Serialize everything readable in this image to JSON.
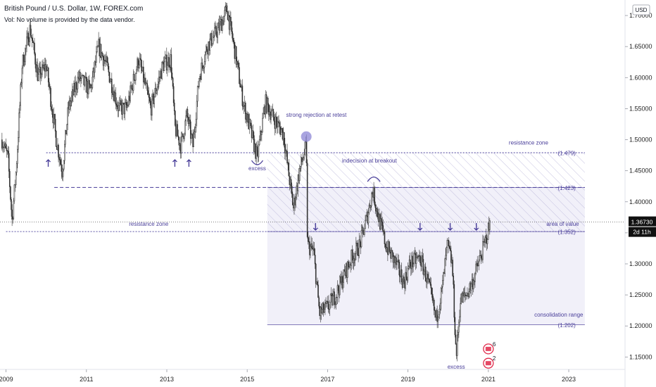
{
  "header": {
    "title": "British Pound / U.S. Dollar, 1W, FOREX.com",
    "volume_note": "Vol: No volume is provided by the data vendor."
  },
  "price_axis": {
    "currency_button": "USD",
    "current_price_label": "1.36730",
    "countdown_label": "2d 11h"
  },
  "colors": {
    "candle": "#333333",
    "accent": "#4a3f9a",
    "zone_fill": "#eeedf8",
    "price_tag": "#111111"
  },
  "chart_data": {
    "type": "candlestick",
    "symbol": "GBPUSD",
    "timeframe": "1W",
    "ylim": [
      1.13,
      1.725
    ],
    "x_range": [
      2008.85,
      2024.4
    ],
    "x_tick_labels": [
      "2009",
      "2011",
      "2013",
      "2015",
      "2017",
      "2019",
      "2021",
      "2023"
    ],
    "x_tick_values": [
      2009,
      2011,
      2013,
      2015,
      2017,
      2019,
      2021,
      2023
    ],
    "y_tick_labels": [
      "1.15000",
      "1.20000",
      "1.25000",
      "1.30000",
      "1.35000",
      "1.40000",
      "1.45000",
      "1.50000",
      "1.55000",
      "1.60000",
      "1.65000",
      "1.70000"
    ],
    "y_tick_values": [
      1.15,
      1.2,
      1.25,
      1.3,
      1.35,
      1.4,
      1.45,
      1.5,
      1.55,
      1.6,
      1.65,
      1.7
    ],
    "current_price": 1.3673,
    "price_path": [
      [
        2008.9,
        1.5
      ],
      [
        2009.05,
        1.47
      ],
      [
        2009.15,
        1.37
      ],
      [
        2009.25,
        1.45
      ],
      [
        2009.4,
        1.62
      ],
      [
        2009.6,
        1.68
      ],
      [
        2009.8,
        1.6
      ],
      [
        2010.0,
        1.62
      ],
      [
        2010.25,
        1.5
      ],
      [
        2010.4,
        1.45
      ],
      [
        2010.55,
        1.55
      ],
      [
        2010.8,
        1.6
      ],
      [
        2011.1,
        1.58
      ],
      [
        2011.3,
        1.65
      ],
      [
        2011.5,
        1.62
      ],
      [
        2011.8,
        1.55
      ],
      [
        2012.0,
        1.55
      ],
      [
        2012.3,
        1.63
      ],
      [
        2012.6,
        1.55
      ],
      [
        2012.9,
        1.62
      ],
      [
        2013.1,
        1.63
      ],
      [
        2013.2,
        1.52
      ],
      [
        2013.35,
        1.49
      ],
      [
        2013.5,
        1.54
      ],
      [
        2013.65,
        1.49
      ],
      [
        2013.8,
        1.6
      ],
      [
        2014.0,
        1.65
      ],
      [
        2014.3,
        1.68
      ],
      [
        2014.5,
        1.71
      ],
      [
        2014.7,
        1.64
      ],
      [
        2014.9,
        1.56
      ],
      [
        2015.1,
        1.51
      ],
      [
        2015.25,
        1.47
      ],
      [
        2015.45,
        1.56
      ],
      [
        2015.7,
        1.53
      ],
      [
        2015.9,
        1.51
      ],
      [
        2016.0,
        1.46
      ],
      [
        2016.15,
        1.39
      ],
      [
        2016.3,
        1.45
      ],
      [
        2016.47,
        1.49
      ],
      [
        2016.5,
        1.33
      ],
      [
        2016.65,
        1.32
      ],
      [
        2016.8,
        1.22
      ],
      [
        2017.0,
        1.23
      ],
      [
        2017.2,
        1.25
      ],
      [
        2017.4,
        1.28
      ],
      [
        2017.6,
        1.31
      ],
      [
        2017.8,
        1.33
      ],
      [
        2018.0,
        1.38
      ],
      [
        2018.12,
        1.42
      ],
      [
        2018.25,
        1.38
      ],
      [
        2018.45,
        1.33
      ],
      [
        2018.7,
        1.3
      ],
      [
        2018.9,
        1.27
      ],
      [
        2019.05,
        1.3
      ],
      [
        2019.3,
        1.31
      ],
      [
        2019.5,
        1.27
      ],
      [
        2019.7,
        1.21
      ],
      [
        2019.85,
        1.26
      ],
      [
        2019.98,
        1.33
      ],
      [
        2020.1,
        1.3
      ],
      [
        2020.2,
        1.15
      ],
      [
        2020.3,
        1.24
      ],
      [
        2020.45,
        1.25
      ],
      [
        2020.6,
        1.27
      ],
      [
        2020.75,
        1.3
      ],
      [
        2020.9,
        1.33
      ],
      [
        2021.05,
        1.367
      ]
    ],
    "levels": [
      {
        "value": 1.479,
        "label": "(1.479)",
        "style": "dotted",
        "x_start": 2010.0
      },
      {
        "value": 1.423,
        "label": "(1.423)",
        "style": "dashed",
        "x_start": 2010.2
      },
      {
        "value": 1.352,
        "label": "(1.352)",
        "style": "dotted",
        "x_start": 2009.0
      },
      {
        "value": 1.202,
        "label": "(1.202)",
        "style": "solid",
        "x_start": 2015.5
      }
    ],
    "zones": [
      {
        "name": "consolidation range",
        "x0": 2015.5,
        "x1": 2023.4,
        "y0": 1.202,
        "y1": 1.423
      },
      {
        "name": "resistance zone (hatched)",
        "x0": 2015.5,
        "x1": 2023.4,
        "y0": 1.352,
        "y1": 1.479
      }
    ],
    "annotations": [
      {
        "text": "strong rejection at retest",
        "x": 2016.72,
        "y": 1.537
      },
      {
        "text": "resistance zone",
        "x": 2022.0,
        "y": 1.492
      },
      {
        "text": "indecision at breakout",
        "x": 2018.04,
        "y": 1.463
      },
      {
        "text": "excess",
        "x": 2015.25,
        "y": 1.451
      },
      {
        "text": "resistance zone",
        "x": 2012.55,
        "y": 1.361
      },
      {
        "text": "area of value",
        "x": 2022.85,
        "y": 1.361
      },
      {
        "text": "consolidation range",
        "x": 2022.75,
        "y": 1.215
      },
      {
        "text": "excess",
        "x": 2020.2,
        "y": 1.131
      }
    ],
    "markers": [
      {
        "type": "arrow-up",
        "x": 2010.05,
        "y": 1.462
      },
      {
        "type": "arrow-up",
        "x": 2013.2,
        "y": 1.462
      },
      {
        "type": "arrow-up",
        "x": 2013.55,
        "y": 1.462
      },
      {
        "type": "arrow-down",
        "x": 2016.7,
        "y": 1.36
      },
      {
        "type": "arrow-down",
        "x": 2019.3,
        "y": 1.36
      },
      {
        "type": "arrow-down",
        "x": 2020.05,
        "y": 1.36
      },
      {
        "type": "arrow-down",
        "x": 2020.7,
        "y": 1.36
      },
      {
        "type": "circle",
        "x": 2016.47,
        "y": 1.505
      },
      {
        "type": "arc",
        "x": 2015.25,
        "y": 1.462
      },
      {
        "type": "arc",
        "x": 2018.15,
        "y": 1.437
      }
    ],
    "event_badges": [
      {
        "count": "6",
        "x": 2021.0,
        "y": 1.163
      },
      {
        "count": "2",
        "x": 2021.0,
        "y": 1.14
      }
    ]
  }
}
